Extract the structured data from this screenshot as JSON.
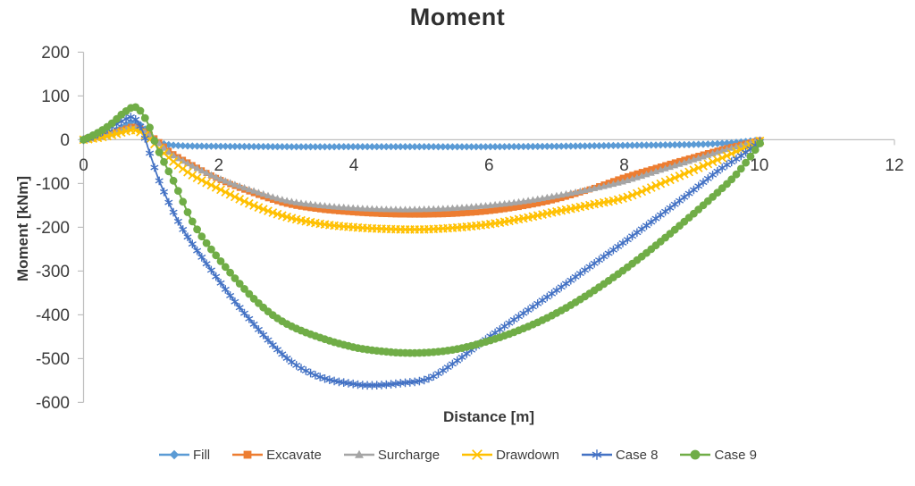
{
  "chart_data": {
    "type": "line",
    "title": "Moment",
    "xlabel": "Distance [m]",
    "ylabel": "Moment [kNm]",
    "xlim": [
      0,
      12
    ],
    "ylim": [
      -600,
      200
    ],
    "xticks": [
      0,
      2,
      4,
      6,
      8,
      10,
      12
    ],
    "yticks": [
      200,
      100,
      0,
      -100,
      -200,
      -300,
      -400,
      -500,
      -600
    ],
    "grid": false,
    "legend_position": "bottom",
    "axis_color": "#BFBFBF",
    "text_color": "#3d3d3d",
    "marker_interval": 0.07,
    "series": [
      {
        "name": "Fill",
        "color": "#5B9BD5",
        "marker": "diamond",
        "marker_size": 4.2,
        "line_width": 2,
        "points": [
          [
            0,
            0
          ],
          [
            0.2,
            6
          ],
          [
            0.4,
            16
          ],
          [
            0.6,
            32
          ],
          [
            0.75,
            42
          ],
          [
            0.9,
            26
          ],
          [
            1.05,
            0
          ],
          [
            1.2,
            -10
          ],
          [
            1.5,
            -14
          ],
          [
            2,
            -15
          ],
          [
            3,
            -16
          ],
          [
            4,
            -16
          ],
          [
            5,
            -16
          ],
          [
            6,
            -16
          ],
          [
            7,
            -15
          ],
          [
            8,
            -13
          ],
          [
            9,
            -11
          ],
          [
            9.5,
            -8
          ],
          [
            9.8,
            -4
          ],
          [
            10.05,
            0
          ]
        ]
      },
      {
        "name": "Excavate",
        "color": "#ED7D31",
        "marker": "square",
        "marker_size": 3.4,
        "line_width": 2,
        "points": [
          [
            0,
            0
          ],
          [
            0.2,
            5
          ],
          [
            0.4,
            13
          ],
          [
            0.6,
            24
          ],
          [
            0.75,
            30
          ],
          [
            0.9,
            20
          ],
          [
            1.1,
            -3
          ],
          [
            1.3,
            -30
          ],
          [
            1.6,
            -57
          ],
          [
            2,
            -90
          ],
          [
            2.5,
            -121
          ],
          [
            3,
            -146
          ],
          [
            3.5,
            -159
          ],
          [
            4,
            -166
          ],
          [
            4.5,
            -170
          ],
          [
            5,
            -171
          ],
          [
            5.5,
            -169
          ],
          [
            6,
            -163
          ],
          [
            6.5,
            -152
          ],
          [
            7,
            -136
          ],
          [
            7.5,
            -113
          ],
          [
            8,
            -86
          ],
          [
            8.5,
            -63
          ],
          [
            9,
            -41
          ],
          [
            9.5,
            -20
          ],
          [
            10.05,
            0
          ]
        ]
      },
      {
        "name": "Surcharge",
        "color": "#A5A5A5",
        "marker": "triangle",
        "marker_size": 4.3,
        "line_width": 2,
        "points": [
          [
            0,
            0
          ],
          [
            0.2,
            5
          ],
          [
            0.4,
            12
          ],
          [
            0.6,
            22
          ],
          [
            0.75,
            28
          ],
          [
            0.9,
            18
          ],
          [
            1.1,
            -6
          ],
          [
            1.3,
            -33
          ],
          [
            1.6,
            -59
          ],
          [
            2,
            -88
          ],
          [
            2.5,
            -116
          ],
          [
            3,
            -139
          ],
          [
            3.5,
            -150
          ],
          [
            4,
            -156
          ],
          [
            4.5,
            -159
          ],
          [
            5,
            -159
          ],
          [
            5.5,
            -156
          ],
          [
            6,
            -150
          ],
          [
            6.5,
            -141
          ],
          [
            7,
            -128
          ],
          [
            7.5,
            -113
          ],
          [
            8,
            -95
          ],
          [
            8.5,
            -71
          ],
          [
            9,
            -47
          ],
          [
            9.5,
            -23
          ],
          [
            10.05,
            0
          ]
        ]
      },
      {
        "name": "Drawdown",
        "color": "#FFC000",
        "marker": "x",
        "marker_size": 4.3,
        "line_width": 2,
        "points": [
          [
            0,
            0
          ],
          [
            0.2,
            4
          ],
          [
            0.4,
            10
          ],
          [
            0.6,
            18
          ],
          [
            0.75,
            22
          ],
          [
            0.9,
            12
          ],
          [
            1.05,
            -10
          ],
          [
            1.3,
            -46
          ],
          [
            1.6,
            -80
          ],
          [
            2,
            -112
          ],
          [
            2.5,
            -149
          ],
          [
            3,
            -176
          ],
          [
            3.5,
            -192
          ],
          [
            4,
            -200
          ],
          [
            4.5,
            -204
          ],
          [
            5,
            -205
          ],
          [
            5.5,
            -201
          ],
          [
            6,
            -193
          ],
          [
            6.5,
            -180
          ],
          [
            7,
            -164
          ],
          [
            7.5,
            -149
          ],
          [
            8,
            -133
          ],
          [
            8.5,
            -103
          ],
          [
            9,
            -71
          ],
          [
            9.5,
            -38
          ],
          [
            10.05,
            0
          ]
        ]
      },
      {
        "name": "Case 8",
        "color": "#4472C4",
        "marker": "star",
        "marker_size": 4.8,
        "line_width": 1.8,
        "points": [
          [
            0,
            0
          ],
          [
            0.2,
            12
          ],
          [
            0.4,
            28
          ],
          [
            0.6,
            45
          ],
          [
            0.72,
            51
          ],
          [
            0.85,
            28
          ],
          [
            1.0,
            -40
          ],
          [
            1.15,
            -105
          ],
          [
            1.45,
            -200
          ],
          [
            1.9,
            -300
          ],
          [
            2.4,
            -400
          ],
          [
            3.0,
            -498
          ],
          [
            3.5,
            -542
          ],
          [
            4.0,
            -558
          ],
          [
            4.3,
            -561
          ],
          [
            4.7,
            -556
          ],
          [
            5.1,
            -546
          ],
          [
            5.5,
            -508
          ],
          [
            5.9,
            -462
          ],
          [
            6.4,
            -408
          ],
          [
            6.9,
            -355
          ],
          [
            7.4,
            -300
          ],
          [
            7.9,
            -245
          ],
          [
            8.4,
            -188
          ],
          [
            8.9,
            -130
          ],
          [
            9.4,
            -70
          ],
          [
            9.7,
            -40
          ],
          [
            10.05,
            0
          ]
        ]
      },
      {
        "name": "Case 9",
        "color": "#70AD47",
        "marker": "circle",
        "marker_size": 4.4,
        "line_width": 2,
        "points": [
          [
            0,
            0
          ],
          [
            0.2,
            15
          ],
          [
            0.4,
            35
          ],
          [
            0.6,
            62
          ],
          [
            0.78,
            74
          ],
          [
            0.95,
            38
          ],
          [
            1.1,
            -22
          ],
          [
            1.35,
            -100
          ],
          [
            1.66,
            -200
          ],
          [
            2.15,
            -300
          ],
          [
            2.6,
            -375
          ],
          [
            3.0,
            -420
          ],
          [
            3.5,
            -452
          ],
          [
            4.0,
            -474
          ],
          [
            4.4,
            -483
          ],
          [
            4.75,
            -487
          ],
          [
            5.1,
            -486
          ],
          [
            5.5,
            -479
          ],
          [
            5.9,
            -464
          ],
          [
            6.4,
            -438
          ],
          [
            6.9,
            -404
          ],
          [
            7.4,
            -360
          ],
          [
            7.9,
            -308
          ],
          [
            8.4,
            -250
          ],
          [
            8.9,
            -186
          ],
          [
            9.4,
            -118
          ],
          [
            9.7,
            -72
          ],
          [
            10.05,
            0
          ]
        ]
      }
    ]
  }
}
